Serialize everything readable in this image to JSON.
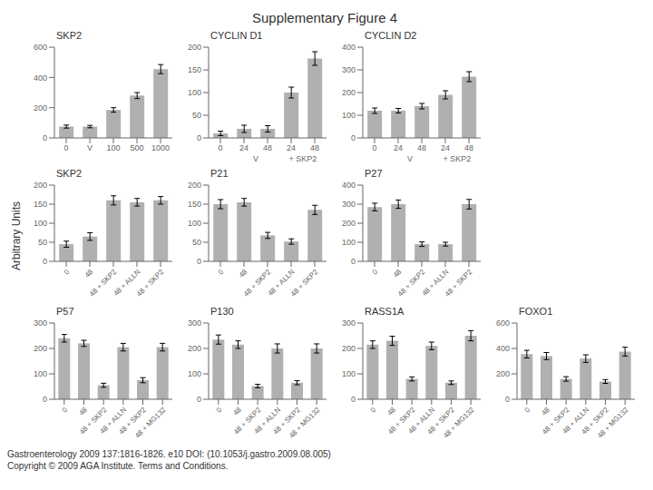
{
  "title": "Supplementary Figure 4",
  "ylabel": "Arbitrary Units",
  "annotations": [
    "Gastroenterology 2009 137:1816-1826. e10 DOI: (10.1053/j.gastro.2009.08.005)",
    "Copyright © 2009 AGA Institute. Terms and Conditions."
  ],
  "chart_data": [
    {
      "type": "bar",
      "title": "SKP2",
      "categories": [
        "0",
        "V",
        "100",
        "500",
        "1000"
      ],
      "values": [
        75,
        75,
        185,
        280,
        455
      ],
      "errors": [
        10,
        8,
        15,
        20,
        30
      ],
      "color": "#b0b0b0",
      "ylim": [
        0,
        600
      ],
      "yticks": [
        0,
        200,
        400,
        600
      ],
      "grid": false
    },
    {
      "type": "bar",
      "title": "CYCLIN D1",
      "categories": [
        "0",
        "24",
        "48",
        "24",
        "48"
      ],
      "annotations": [
        "V",
        "+ SKP2"
      ],
      "values": [
        10,
        20,
        20,
        100,
        175
      ],
      "errors": [
        5,
        8,
        7,
        12,
        15
      ],
      "color": "#b0b0b0",
      "ylim": [
        0,
        200
      ],
      "yticks": [
        0,
        50,
        100,
        150,
        200
      ],
      "grid": false
    },
    {
      "type": "bar",
      "title": "CYCLIN D2",
      "categories": [
        "0",
        "24",
        "48",
        "24",
        "48"
      ],
      "annotations": [
        "V",
        "+ SKP2"
      ],
      "values": [
        120,
        120,
        140,
        190,
        270
      ],
      "errors": [
        12,
        10,
        12,
        18,
        22
      ],
      "color": "#b0b0b0",
      "ylim": [
        0,
        400
      ],
      "yticks": [
        0,
        100,
        200,
        300,
        400
      ],
      "grid": false
    },
    {
      "type": "bar",
      "title": "SKP2",
      "categories": [
        "0",
        "48",
        "48 + SKP2",
        "48 + ALLN",
        "48 + SKP2"
      ],
      "values": [
        45,
        65,
        160,
        155,
        160
      ],
      "errors": [
        8,
        10,
        12,
        10,
        10
      ],
      "color": "#b0b0b0",
      "ylim": [
        0,
        200
      ],
      "yticks": [
        0,
        50,
        100,
        150,
        200
      ],
      "grid": false
    },
    {
      "type": "bar",
      "title": "P21",
      "categories": [
        "0",
        "48",
        "48 + SKP2",
        "48 + ALLN",
        "48 + SKP2"
      ],
      "values": [
        150,
        155,
        68,
        52,
        135
      ],
      "errors": [
        12,
        10,
        8,
        7,
        12
      ],
      "color": "#b0b0b0",
      "ylim": [
        0,
        200
      ],
      "yticks": [
        0,
        50,
        100,
        150,
        200
      ],
      "grid": false
    },
    {
      "type": "bar",
      "title": "P27",
      "categories": [
        "0",
        "48",
        "48 + SKP2",
        "48 + ALLN",
        "48 + SKP2"
      ],
      "values": [
        285,
        300,
        90,
        90,
        300
      ],
      "errors": [
        20,
        22,
        12,
        10,
        25
      ],
      "color": "#b0b0b0",
      "ylim": [
        0,
        400
      ],
      "yticks": [
        0,
        100,
        200,
        300,
        400
      ],
      "grid": false
    },
    {
      "type": "bar",
      "title": "P57",
      "categories": [
        "0",
        "48",
        "48 + SKP2",
        "48 + ALLN",
        "48 + SKP2",
        "48 + MG132"
      ],
      "values": [
        240,
        220,
        55,
        205,
        75,
        205
      ],
      "errors": [
        15,
        12,
        8,
        15,
        10,
        15
      ],
      "color": "#b0b0b0",
      "ylim": [
        0,
        300
      ],
      "yticks": [
        0,
        100,
        200,
        300
      ],
      "grid": false
    },
    {
      "type": "bar",
      "title": "P130",
      "categories": [
        "0",
        "48",
        "48 + SKP2",
        "48 + ALLN",
        "48 + SKP2",
        "48 + MG132"
      ],
      "values": [
        235,
        215,
        52,
        200,
        65,
        200
      ],
      "errors": [
        18,
        15,
        7,
        18,
        8,
        18
      ],
      "color": "#b0b0b0",
      "ylim": [
        0,
        300
      ],
      "yticks": [
        0,
        100,
        200,
        300
      ],
      "grid": false
    },
    {
      "type": "bar",
      "title": "RASS1A",
      "categories": [
        "0",
        "48",
        "48 + SKP2",
        "48 + ALLN",
        "48 + SKP2",
        "48 + MG132"
      ],
      "values": [
        215,
        230,
        80,
        210,
        65,
        250
      ],
      "errors": [
        15,
        18,
        8,
        15,
        7,
        20
      ],
      "color": "#b0b0b0",
      "ylim": [
        0,
        300
      ],
      "yticks": [
        0,
        100,
        200,
        300
      ],
      "grid": false
    },
    {
      "type": "bar",
      "title": "FOXO1",
      "categories": [
        "0",
        "48",
        "48 + SKP2",
        "48 + ALLN",
        "48 + SKP2",
        "48 + MG132"
      ],
      "values": [
        355,
        340,
        160,
        320,
        140,
        375
      ],
      "errors": [
        30,
        28,
        18,
        30,
        15,
        35
      ],
      "color": "#b0b0b0",
      "ylim": [
        0,
        600
      ],
      "yticks": [
        0,
        200,
        400,
        600
      ],
      "grid": false
    }
  ]
}
